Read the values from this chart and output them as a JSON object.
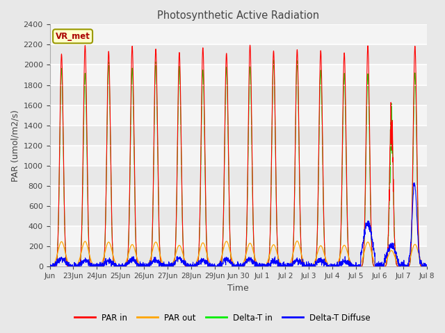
{
  "title": "Photosynthetic Active Radiation",
  "xlabel": "Time",
  "ylabel": "PAR (umol/m2/s)",
  "ylim": [
    0,
    2400
  ],
  "yticks": [
    0,
    200,
    400,
    600,
    800,
    1000,
    1200,
    1400,
    1600,
    1800,
    2000,
    2200,
    2400
  ],
  "legend_labels": [
    "PAR in",
    "PAR out",
    "Delta-T in",
    "Delta-T Diffuse"
  ],
  "legend_colors": [
    "#ff0000",
    "#ffa500",
    "#00ee00",
    "#0000ff"
  ],
  "line_colors": {
    "PAR_in": "#ff0000",
    "PAR_out": "#ffa500",
    "Delta_T_in": "#00ee00",
    "Delta_T_Diffuse": "#0000ff"
  },
  "vr_met_box": {
    "text": "VR_met",
    "facecolor": "#ffffcc",
    "edgecolor": "#999900",
    "textcolor": "#aa0000"
  },
  "fig_facecolor": "#e8e8e8",
  "plot_facecolor": "#ffffff",
  "tick_labels": [
    "Jun",
    "23Jun",
    "24Jun",
    "25Jun",
    "26Jun",
    "27Jun",
    "28Jun",
    "29Jun",
    "Jun 30",
    "Jul 1",
    "Jul 2",
    "Jul 3",
    "Jul 4",
    "Jul 5",
    "Jul 6",
    "Jul 7",
    "Jul 8"
  ]
}
